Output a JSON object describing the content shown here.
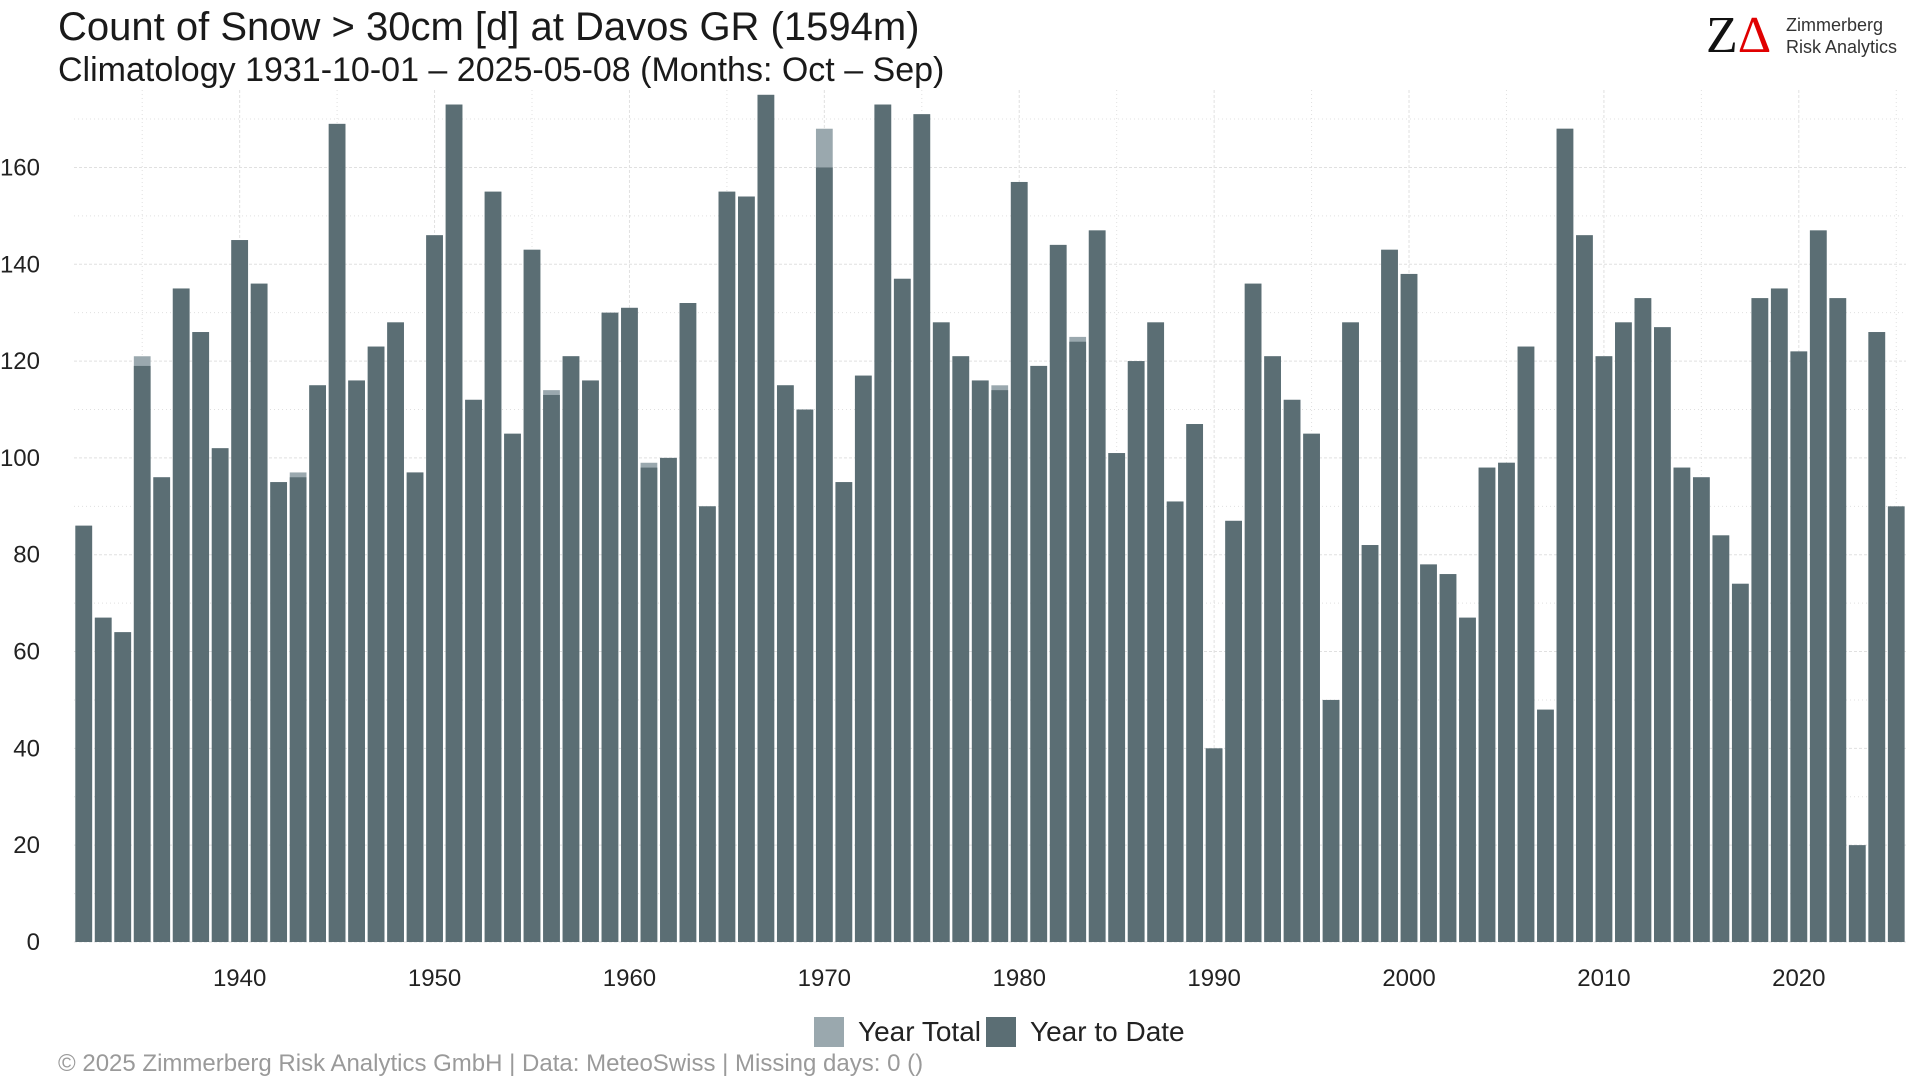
{
  "header": {
    "title": "Count of Snow > 30cm [d] at Davos  GR (1594m)",
    "subtitle": "Climatology 1931-10-01 – 2025-05-08 (Months: Oct – Sep)"
  },
  "logo": {
    "mark_z": "Z",
    "mark_delta": "Δ",
    "line1": "Zimmerberg",
    "line2": "Risk Analytics"
  },
  "footer": {
    "text": "©  2025 Zimmerberg Risk Analytics GmbH | Data: MeteoSwiss | Missing days: 0 ()"
  },
  "colors": {
    "year_total": "#9aa8ae",
    "year_to_date": "#5b6e74",
    "grid": "#e0e0e0"
  },
  "chart_data": {
    "type": "bar",
    "title": "Count of Snow > 30cm [d] at Davos  GR (1594m)",
    "subtitle": "Climatology 1931-10-01 – 2025-05-08 (Months: Oct – Sep)",
    "xlabel": "",
    "ylabel": "",
    "ylim": [
      0,
      176
    ],
    "y_ticks": [
      0,
      20,
      40,
      60,
      80,
      100,
      120,
      140,
      160
    ],
    "x_ticks": [
      1940,
      1950,
      1960,
      1970,
      1980,
      1990,
      2000,
      2010,
      2020
    ],
    "grid": true,
    "legend_position": "bottom",
    "categories": [
      1932,
      1933,
      1934,
      1935,
      1936,
      1937,
      1938,
      1939,
      1940,
      1941,
      1942,
      1943,
      1944,
      1945,
      1946,
      1947,
      1948,
      1949,
      1950,
      1951,
      1952,
      1953,
      1954,
      1955,
      1956,
      1957,
      1958,
      1959,
      1960,
      1961,
      1962,
      1963,
      1964,
      1965,
      1966,
      1967,
      1968,
      1969,
      1970,
      1971,
      1972,
      1973,
      1974,
      1975,
      1976,
      1977,
      1978,
      1979,
      1980,
      1981,
      1982,
      1983,
      1984,
      1985,
      1986,
      1987,
      1988,
      1989,
      1990,
      1991,
      1992,
      1993,
      1994,
      1995,
      1996,
      1997,
      1998,
      1999,
      2000,
      2001,
      2002,
      2003,
      2004,
      2005,
      2006,
      2007,
      2008,
      2009,
      2010,
      2011,
      2012,
      2013,
      2014,
      2015,
      2016,
      2017,
      2018,
      2019,
      2020,
      2021,
      2022,
      2023,
      2024,
      2025
    ],
    "series": [
      {
        "name": "Year Total",
        "values": [
          86,
          67,
          64,
          121,
          96,
          135,
          126,
          102,
          145,
          136,
          95,
          97,
          115,
          169,
          116,
          123,
          128,
          97,
          146,
          173,
          112,
          155,
          105,
          143,
          114,
          121,
          116,
          130,
          131,
          99,
          100,
          132,
          90,
          155,
          154,
          175,
          115,
          110,
          168,
          95,
          117,
          173,
          137,
          171,
          128,
          121,
          116,
          115,
          157,
          119,
          144,
          125,
          147,
          101,
          120,
          128,
          91,
          107,
          40,
          87,
          136,
          121,
          112,
          105,
          50,
          128,
          82,
          143,
          138,
          78,
          76,
          67,
          98,
          99,
          123,
          48,
          168,
          146,
          121,
          128,
          133,
          127,
          98,
          96,
          84,
          74,
          133,
          135,
          122,
          147,
          133,
          20,
          126,
          null
        ]
      },
      {
        "name": "Year to Date",
        "values": [
          86,
          67,
          64,
          119,
          96,
          135,
          126,
          102,
          145,
          136,
          95,
          96,
          115,
          169,
          116,
          123,
          128,
          97,
          146,
          173,
          112,
          155,
          105,
          143,
          113,
          121,
          116,
          130,
          131,
          98,
          100,
          132,
          90,
          155,
          154,
          175,
          115,
          110,
          160,
          95,
          117,
          173,
          137,
          171,
          128,
          121,
          116,
          114,
          157,
          119,
          144,
          124,
          147,
          101,
          120,
          128,
          91,
          107,
          40,
          87,
          136,
          121,
          112,
          105,
          50,
          128,
          82,
          143,
          138,
          78,
          76,
          67,
          98,
          99,
          123,
          48,
          168,
          146,
          121,
          128,
          133,
          127,
          98,
          96,
          84,
          74,
          133,
          135,
          122,
          147,
          133,
          20,
          126,
          90
        ]
      }
    ]
  }
}
